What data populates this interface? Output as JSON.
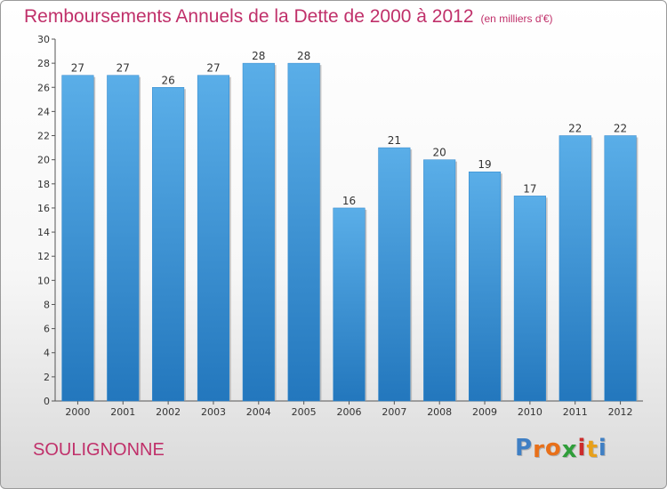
{
  "chart_data": {
    "type": "bar",
    "title": "Remboursements Annuels de la Dette de 2000 à 2012",
    "subtitle": "(en milliers d'€)",
    "categories": [
      "2000",
      "2001",
      "2002",
      "2003",
      "2004",
      "2005",
      "2006",
      "2007",
      "2008",
      "2009",
      "2010",
      "2011",
      "2012"
    ],
    "values": [
      27,
      27,
      26,
      27,
      28,
      28,
      16,
      21,
      20,
      19,
      17,
      22,
      22
    ],
    "ylim": [
      0,
      30
    ],
    "yticks": [
      0,
      2,
      4,
      6,
      8,
      10,
      12,
      14,
      16,
      18,
      20,
      22,
      24,
      26,
      28,
      30
    ],
    "xlabel": "",
    "ylabel": "",
    "grid": false,
    "bar_color": "#2f86cc"
  },
  "footer": {
    "place_name": "SOULIGNONNE",
    "logo": {
      "letters": [
        "P",
        "r",
        "o",
        "x",
        "i",
        "t",
        "i"
      ],
      "colors": [
        "#3f7fc4",
        "#e8701a",
        "#e8701a",
        "#2f9e3a",
        "#cc2b2b",
        "#e8a019",
        "#3f7fc4"
      ]
    }
  },
  "colors": {
    "accent": "#c0306a",
    "axis": "#555555",
    "label": "#333333"
  }
}
